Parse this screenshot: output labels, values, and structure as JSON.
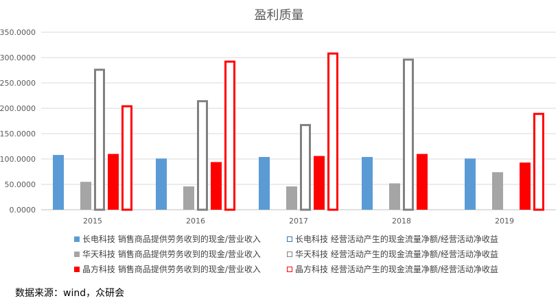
{
  "chart_data": {
    "type": "bar",
    "title": "盈利质量",
    "categories": [
      "2015",
      "2016",
      "2017",
      "2018",
      "2019"
    ],
    "ylim": [
      0,
      350
    ],
    "yticks": [
      "0.0000",
      "50.0000",
      "100.0000",
      "150.0000",
      "200.0000",
      "250.0000",
      "300.0000",
      "350.0000"
    ],
    "grid": true,
    "legend_position": "bottom",
    "series": [
      {
        "name": "长电科技 销售商品提供劳务收到的现金/营业收入",
        "style": "filled",
        "color": "#5B9BD5",
        "values": [
          108,
          101,
          104,
          104,
          101
        ]
      },
      {
        "name": "华天科技 销售商品提供劳务收到的现金/营业收入",
        "style": "filled",
        "color": "#A5A5A5",
        "values": [
          55,
          46,
          46,
          52,
          74
        ]
      },
      {
        "name": "晶方科技 销售商品提供劳务收到的现金/营业收入",
        "style": "filled",
        "color": "#FF0000",
        "values": [
          110,
          94,
          106,
          110,
          93
        ]
      },
      {
        "name": "长电科技 经营活动产生的现金流量净额/经营活动净收益",
        "style": "outline",
        "color": "#2E75B6",
        "values": [
          null,
          null,
          null,
          null,
          null
        ]
      },
      {
        "name": "华天科技 经营活动产生的现金流量净额/经营活动净收益",
        "style": "outline",
        "color": "#808080",
        "values": [
          278,
          216,
          169,
          298,
          null
        ]
      },
      {
        "name": "晶方科技 经营活动产生的现金流量净额/经营活动净收益",
        "style": "outline",
        "color": "#FF0000",
        "values": [
          206,
          294,
          310,
          null,
          191
        ]
      }
    ]
  },
  "source": "数据来源：wind，众研会"
}
